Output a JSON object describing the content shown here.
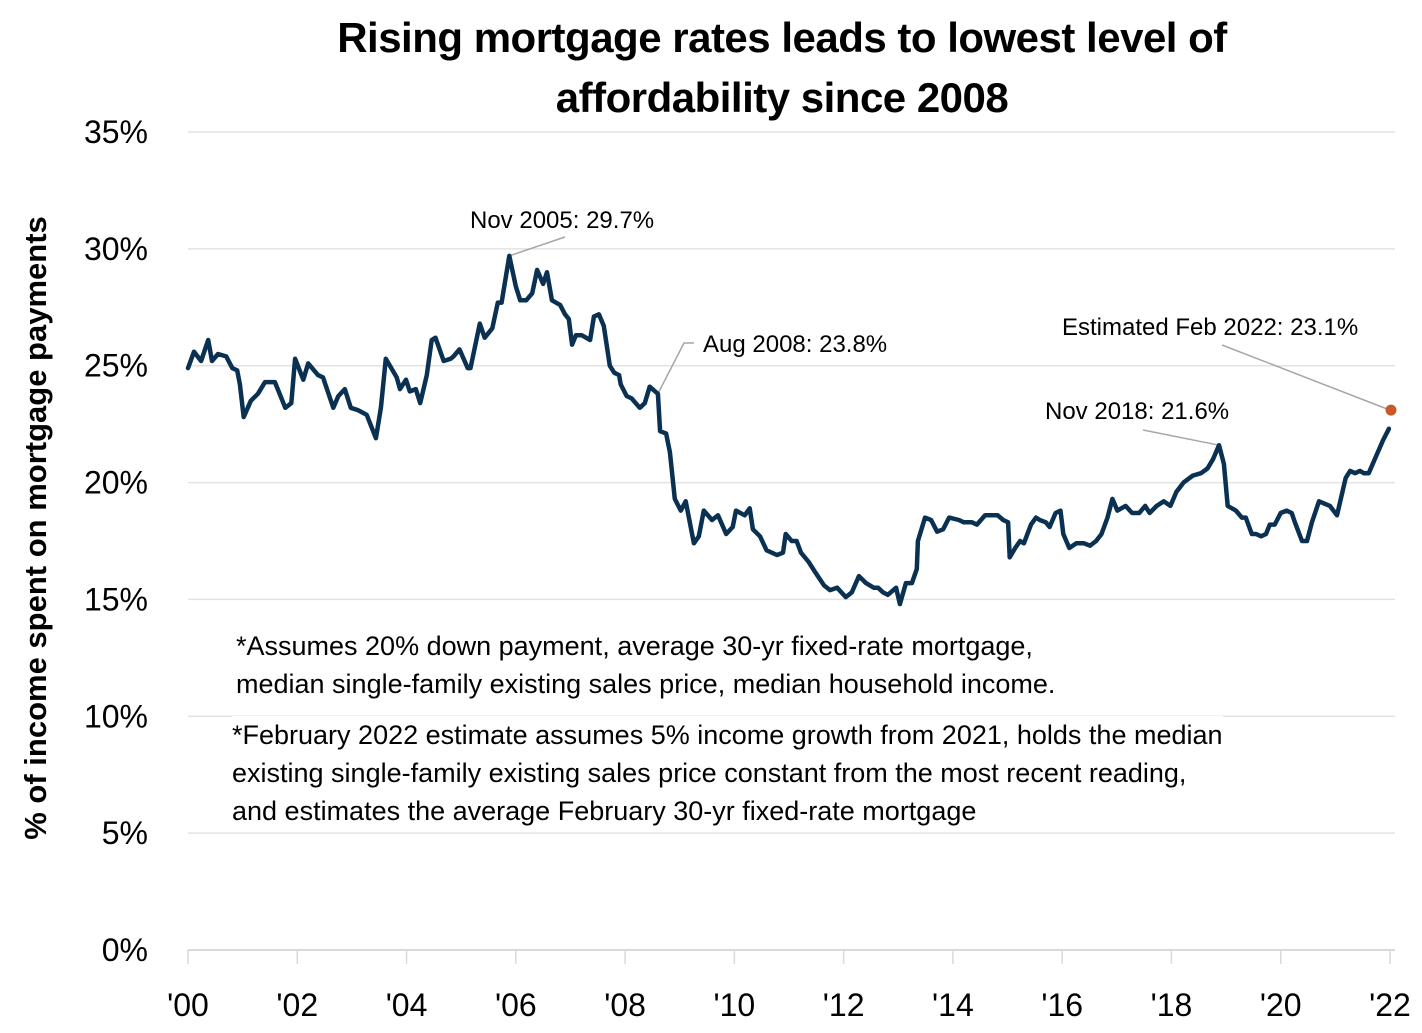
{
  "chart_data": {
    "type": "line",
    "title": [
      "Rising mortgage rates leads to lowest level of",
      "affordability since 2008"
    ],
    "xlabel": "",
    "ylabel": "% of income spent on mortgage payments",
    "xlim": [
      2000,
      2022
    ],
    "ylim": [
      0,
      35
    ],
    "grid": true,
    "x_ticks": [
      "'00",
      "'02",
      "'04",
      "'06",
      "'08",
      "'10",
      "'12",
      "'14",
      "'16",
      "'18",
      "'20",
      "'22"
    ],
    "x_tick_values": [
      2000,
      2002,
      2004,
      2006,
      2008,
      2010,
      2012,
      2014,
      2016,
      2018,
      2020,
      2022
    ],
    "y_ticks": [
      "0%",
      "5%",
      "10%",
      "15%",
      "20%",
      "25%",
      "30%",
      "35%"
    ],
    "y_tick_values": [
      0,
      5,
      10,
      15,
      20,
      25,
      30,
      35
    ],
    "series": [
      {
        "name": "% of income spent on mortgage payments",
        "color": "#0b3152",
        "points": [
          [
            2000.0,
            24.9
          ],
          [
            2000.11,
            25.6
          ],
          [
            2000.24,
            25.2
          ],
          [
            2000.37,
            26.1
          ],
          [
            2000.44,
            25.2
          ],
          [
            2000.55,
            25.5
          ],
          [
            2000.7,
            25.4
          ],
          [
            2000.81,
            24.9
          ],
          [
            2000.9,
            24.8
          ],
          [
            2000.95,
            24.2
          ],
          [
            2001.02,
            22.8
          ],
          [
            2001.15,
            23.5
          ],
          [
            2001.28,
            23.8
          ],
          [
            2001.41,
            24.3
          ],
          [
            2001.59,
            24.3
          ],
          [
            2001.78,
            23.2
          ],
          [
            2001.89,
            23.4
          ],
          [
            2001.96,
            25.3
          ],
          [
            2002.11,
            24.4
          ],
          [
            2002.2,
            25.1
          ],
          [
            2002.38,
            24.6
          ],
          [
            2002.47,
            24.5
          ],
          [
            2002.66,
            23.2
          ],
          [
            2002.75,
            23.7
          ],
          [
            2002.87,
            24.0
          ],
          [
            2002.98,
            23.2
          ],
          [
            2003.11,
            23.1
          ],
          [
            2003.27,
            22.9
          ],
          [
            2003.44,
            21.9
          ],
          [
            2003.53,
            23.2
          ],
          [
            2003.62,
            25.3
          ],
          [
            2003.82,
            24.5
          ],
          [
            2003.88,
            24.0
          ],
          [
            2003.99,
            24.4
          ],
          [
            2004.06,
            23.9
          ],
          [
            2004.17,
            24.0
          ],
          [
            2004.25,
            23.4
          ],
          [
            2004.37,
            24.6
          ],
          [
            2004.46,
            26.1
          ],
          [
            2004.53,
            26.2
          ],
          [
            2004.68,
            25.2
          ],
          [
            2004.81,
            25.3
          ],
          [
            2004.86,
            25.4
          ],
          [
            2004.97,
            25.7
          ],
          [
            2005.12,
            24.9
          ],
          [
            2005.17,
            24.9
          ],
          [
            2005.26,
            25.9
          ],
          [
            2005.34,
            26.8
          ],
          [
            2005.43,
            26.2
          ],
          [
            2005.57,
            26.6
          ],
          [
            2005.67,
            27.7
          ],
          [
            2005.74,
            27.7
          ],
          [
            2005.88,
            29.7
          ],
          [
            2006.0,
            28.4
          ],
          [
            2006.08,
            27.8
          ],
          [
            2006.19,
            27.8
          ],
          [
            2006.3,
            28.1
          ],
          [
            2006.39,
            29.1
          ],
          [
            2006.5,
            28.5
          ],
          [
            2006.57,
            29.0
          ],
          [
            2006.66,
            27.8
          ],
          [
            2006.81,
            27.6
          ],
          [
            2006.9,
            27.2
          ],
          [
            2006.97,
            27.0
          ],
          [
            2007.03,
            25.9
          ],
          [
            2007.1,
            26.3
          ],
          [
            2007.21,
            26.3
          ],
          [
            2007.36,
            26.1
          ],
          [
            2007.43,
            27.1
          ],
          [
            2007.52,
            27.2
          ],
          [
            2007.61,
            26.7
          ],
          [
            2007.72,
            25.0
          ],
          [
            2007.8,
            24.7
          ],
          [
            2007.89,
            24.6
          ],
          [
            2007.92,
            24.2
          ],
          [
            2008.03,
            23.7
          ],
          [
            2008.12,
            23.6
          ],
          [
            2008.27,
            23.2
          ],
          [
            2008.36,
            23.4
          ],
          [
            2008.45,
            24.1
          ],
          [
            2008.6,
            23.8
          ],
          [
            2008.64,
            22.2
          ],
          [
            2008.75,
            22.1
          ],
          [
            2008.82,
            21.3
          ],
          [
            2008.91,
            19.3
          ],
          [
            2009.02,
            18.8
          ],
          [
            2009.11,
            19.2
          ],
          [
            2009.26,
            17.4
          ],
          [
            2009.35,
            17.7
          ],
          [
            2009.44,
            18.8
          ],
          [
            2009.59,
            18.4
          ],
          [
            2009.7,
            18.6
          ],
          [
            2009.85,
            17.8
          ],
          [
            2009.97,
            18.1
          ],
          [
            2010.03,
            18.8
          ],
          [
            2010.19,
            18.6
          ],
          [
            2010.28,
            18.9
          ],
          [
            2010.34,
            18.0
          ],
          [
            2010.47,
            17.7
          ],
          [
            2010.59,
            17.1
          ],
          [
            2010.78,
            16.9
          ],
          [
            2010.89,
            17.0
          ],
          [
            2010.94,
            17.8
          ],
          [
            2011.05,
            17.5
          ],
          [
            2011.14,
            17.5
          ],
          [
            2011.22,
            17.0
          ],
          [
            2011.36,
            16.6
          ],
          [
            2011.47,
            16.2
          ],
          [
            2011.64,
            15.6
          ],
          [
            2011.75,
            15.4
          ],
          [
            2011.88,
            15.5
          ],
          [
            2012.04,
            15.1
          ],
          [
            2012.15,
            15.3
          ],
          [
            2012.28,
            16.0
          ],
          [
            2012.41,
            15.7
          ],
          [
            2012.55,
            15.5
          ],
          [
            2012.63,
            15.5
          ],
          [
            2012.72,
            15.3
          ],
          [
            2012.81,
            15.2
          ],
          [
            2012.96,
            15.5
          ],
          [
            2013.03,
            14.8
          ],
          [
            2013.14,
            15.7
          ],
          [
            2013.25,
            15.7
          ],
          [
            2013.34,
            16.3
          ],
          [
            2013.36,
            17.5
          ],
          [
            2013.49,
            18.5
          ],
          [
            2013.6,
            18.4
          ],
          [
            2013.71,
            17.9
          ],
          [
            2013.82,
            18.0
          ],
          [
            2013.93,
            18.5
          ],
          [
            2014.11,
            18.4
          ],
          [
            2014.2,
            18.3
          ],
          [
            2014.35,
            18.3
          ],
          [
            2014.44,
            18.2
          ],
          [
            2014.59,
            18.6
          ],
          [
            2014.73,
            18.6
          ],
          [
            2014.82,
            18.6
          ],
          [
            2014.92,
            18.4
          ],
          [
            2015.01,
            18.3
          ],
          [
            2015.04,
            16.8
          ],
          [
            2015.14,
            17.2
          ],
          [
            2015.23,
            17.5
          ],
          [
            2015.3,
            17.4
          ],
          [
            2015.43,
            18.2
          ],
          [
            2015.52,
            18.5
          ],
          [
            2015.59,
            18.4
          ],
          [
            2015.7,
            18.3
          ],
          [
            2015.77,
            18.1
          ],
          [
            2015.88,
            18.7
          ],
          [
            2015.97,
            18.8
          ],
          [
            2016.02,
            17.8
          ],
          [
            2016.13,
            17.2
          ],
          [
            2016.26,
            17.4
          ],
          [
            2016.4,
            17.4
          ],
          [
            2016.51,
            17.3
          ],
          [
            2016.62,
            17.5
          ],
          [
            2016.72,
            17.8
          ],
          [
            2016.83,
            18.5
          ],
          [
            2016.92,
            19.3
          ],
          [
            2017.01,
            18.8
          ],
          [
            2017.16,
            19.0
          ],
          [
            2017.28,
            18.7
          ],
          [
            2017.41,
            18.7
          ],
          [
            2017.52,
            19.0
          ],
          [
            2017.6,
            18.7
          ],
          [
            2017.73,
            19.0
          ],
          [
            2017.86,
            19.2
          ],
          [
            2017.98,
            19.0
          ],
          [
            2018.09,
            19.6
          ],
          [
            2018.22,
            20.0
          ],
          [
            2018.39,
            20.3
          ],
          [
            2018.54,
            20.4
          ],
          [
            2018.66,
            20.6
          ],
          [
            2018.76,
            21.0
          ],
          [
            2018.87,
            21.6
          ],
          [
            2018.96,
            20.8
          ],
          [
            2019.03,
            19.0
          ],
          [
            2019.18,
            18.8
          ],
          [
            2019.29,
            18.5
          ],
          [
            2019.36,
            18.5
          ],
          [
            2019.47,
            17.8
          ],
          [
            2019.55,
            17.8
          ],
          [
            2019.64,
            17.7
          ],
          [
            2019.73,
            17.8
          ],
          [
            2019.8,
            18.2
          ],
          [
            2019.89,
            18.2
          ],
          [
            2020.0,
            18.7
          ],
          [
            2020.11,
            18.8
          ],
          [
            2020.2,
            18.7
          ],
          [
            2020.26,
            18.3
          ],
          [
            2020.39,
            17.5
          ],
          [
            2020.48,
            17.5
          ],
          [
            2020.57,
            18.3
          ],
          [
            2020.7,
            19.2
          ],
          [
            2020.9,
            19.0
          ],
          [
            2021.03,
            18.6
          ],
          [
            2021.19,
            20.2
          ],
          [
            2021.27,
            20.5
          ],
          [
            2021.36,
            20.4
          ],
          [
            2021.45,
            20.5
          ],
          [
            2021.52,
            20.4
          ],
          [
            2021.61,
            20.4
          ],
          [
            2021.74,
            21.1
          ],
          [
            2021.87,
            21.8
          ],
          [
            2021.98,
            22.3
          ]
        ]
      },
      {
        "name": "Estimated Feb 2022",
        "color": "#c8592b",
        "points": [
          [
            2022.0,
            23.1
          ]
        ]
      }
    ],
    "annotations": [
      {
        "text": "Nov 2005: 29.7%",
        "x": 2005.88,
        "y": 29.7
      },
      {
        "text": "Aug 2008: 23.8%",
        "x": 2008.6,
        "y": 23.8
      },
      {
        "text": "Nov 2018: 21.6%",
        "x": 2018.87,
        "y": 21.6
      },
      {
        "text": "Estimated Feb 2022: 23.1%",
        "x": 2022.0,
        "y": 23.1
      }
    ],
    "notes": [
      [
        "*Assumes 20% down payment, average 30-yr fixed-rate mortgage,",
        "median single-family existing sales price, median household income."
      ],
      [
        "*February 2022 estimate assumes 5% income growth from 2021, holds the median",
        "existing single-family existing sales price constant from the most recent reading,",
        "and estimates the average February 30-yr fixed-rate mortgage"
      ]
    ]
  }
}
